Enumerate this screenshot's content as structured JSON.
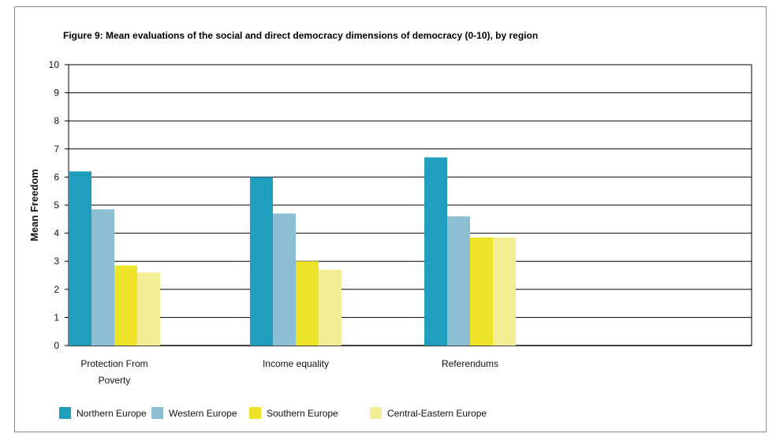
{
  "chart_data": {
    "type": "bar",
    "title": "Figure 9: Mean evaluations of the social and direct democracy dimensions of democracy (0-10), by region",
    "xlabel": "",
    "ylabel": "Mean Freedom",
    "ylim": [
      0,
      10
    ],
    "yticks": [
      0,
      1,
      2,
      3,
      4,
      5,
      6,
      7,
      8,
      9,
      10
    ],
    "grid": true,
    "legend_position": "bottom",
    "categories": [
      [
        "Protection From",
        "Poverty"
      ],
      [
        "Income equality"
      ],
      [
        "Referendums"
      ]
    ],
    "series": [
      {
        "name": "Northern Europe",
        "color": "#1f9fbd",
        "values": [
          6.2,
          6.0,
          6.7
        ]
      },
      {
        "name": "Western Europe",
        "color": "#8cbfd4",
        "values": [
          4.85,
          4.7,
          4.6
        ]
      },
      {
        "name": "Southern Europe",
        "color": "#ede42a",
        "values": [
          2.85,
          3.0,
          3.85
        ]
      },
      {
        "name": "Central-Eastern Europe",
        "color": "#f3ee93",
        "values": [
          2.6,
          2.7,
          3.85
        ]
      }
    ]
  }
}
